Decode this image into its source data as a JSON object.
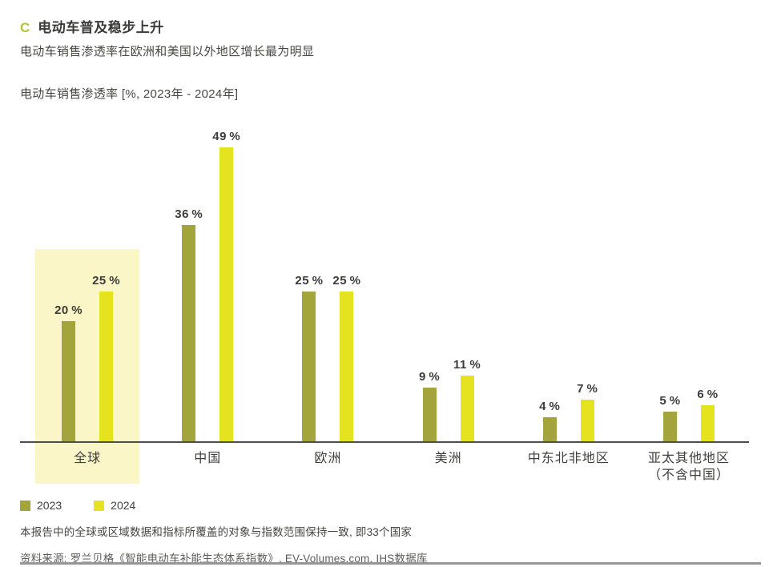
{
  "header": {
    "marker": "C",
    "title": "电动车普及稳步上升",
    "subtitle": "电动车销售渗透率在欧洲和美国以外地区增长最为明显"
  },
  "measure_label": "电动车销售渗透率 [%, 2023年 - 2024年]",
  "chart_data": {
    "type": "bar",
    "title": "电动车销售渗透率 [%, 2023年 - 2024年]",
    "categories": [
      "全球",
      "中国",
      "欧洲",
      "美洲",
      "中东北非地区",
      "亚太其他地区\n（不含中国）"
    ],
    "series": [
      {
        "name": "2023",
        "color": "#a3a43c",
        "values": [
          20,
          36,
          25,
          9,
          4,
          5
        ]
      },
      {
        "name": "2024",
        "color": "#e5e320",
        "values": [
          25,
          49,
          25,
          11,
          7,
          6
        ]
      }
    ],
    "value_suffix": "%",
    "ylim": [
      0,
      50
    ],
    "grid": false,
    "legend_position": "bottom-left",
    "highlight_category": "全球",
    "highlight_color": "#faf6c7"
  },
  "colors": {
    "series_2023": "#a3a43c",
    "series_2024": "#e5e320",
    "highlight": "#faf6c7",
    "marker_accent": "#b7c336",
    "text_dark": "#3a3a38",
    "axis": "#4e4e4c"
  },
  "footnote": "本报告中的全球或区域数据和指标所覆盖的对象与指数范围保持一致, 即33个国家",
  "source": "资料来源: 罗兰贝格《智能电动车补能生态体系指数》, EV-Volumes.com, IHS数据库"
}
